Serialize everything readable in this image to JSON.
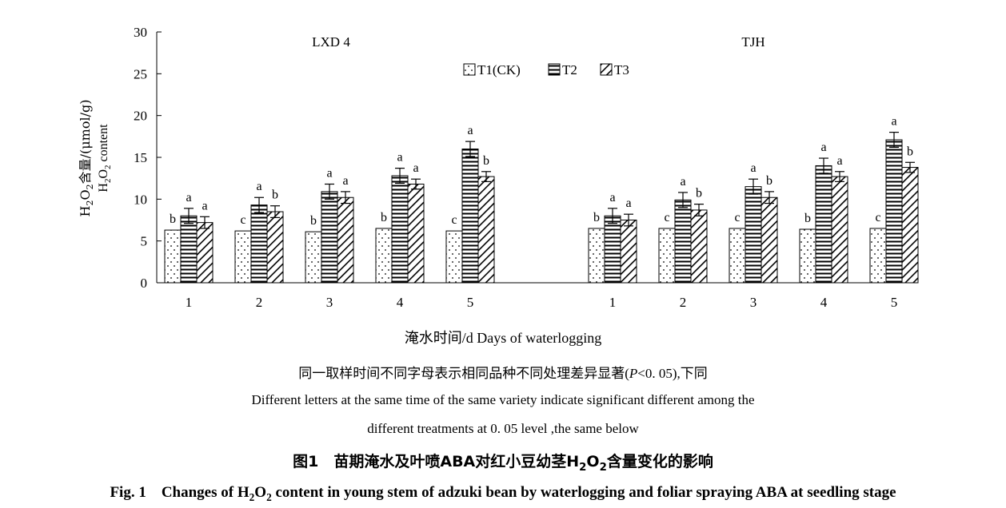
{
  "chart_data": {
    "type": "bar",
    "ylabel_cn": "H2O2含量/(μmol/g)",
    "ylabel_en": "H2O2 content",
    "xlabel": "淹水时间/d Days of waterlogging",
    "ylim": [
      0,
      30
    ],
    "yticks": [
      0,
      5,
      10,
      15,
      20,
      25,
      30
    ],
    "legend": [
      "T1(CK)",
      "T2",
      "T3"
    ],
    "legend_position": "top-center",
    "groups": [
      {
        "name": "LXD 4",
        "categories": [
          "1",
          "2",
          "3",
          "4",
          "5"
        ],
        "series": [
          {
            "name": "T1(CK)",
            "values": [
              6.3,
              6.2,
              6.1,
              6.5,
              6.2
            ],
            "errors": [
              0,
              0,
              0,
              0,
              0
            ],
            "letters": [
              "b",
              "c",
              "b",
              "b",
              "c"
            ]
          },
          {
            "name": "T2",
            "values": [
              8.0,
              9.3,
              10.9,
              12.8,
              16.0
            ],
            "errors": [
              0.9,
              0.9,
              0.9,
              0.9,
              0.9
            ],
            "letters": [
              "a",
              "a",
              "a",
              "a",
              "a"
            ]
          },
          {
            "name": "T3",
            "values": [
              7.2,
              8.5,
              10.2,
              11.8,
              12.7
            ],
            "errors": [
              0.7,
              0.7,
              0.7,
              0.6,
              0.6
            ],
            "letters": [
              "a",
              "b",
              "a",
              "a",
              "b"
            ]
          }
        ]
      },
      {
        "name": "TJH",
        "categories": [
          "1",
          "2",
          "3",
          "4",
          "5"
        ],
        "series": [
          {
            "name": "T1(CK)",
            "values": [
              6.5,
              6.5,
              6.5,
              6.4,
              6.5
            ],
            "errors": [
              0,
              0,
              0,
              0,
              0
            ],
            "letters": [
              "b",
              "c",
              "c",
              "b",
              "c"
            ]
          },
          {
            "name": "T2",
            "values": [
              8.0,
              9.9,
              11.5,
              14.0,
              17.1
            ],
            "errors": [
              0.9,
              0.9,
              0.9,
              0.9,
              0.9
            ],
            "letters": [
              "a",
              "a",
              "a",
              "a",
              "a"
            ]
          },
          {
            "name": "T3",
            "values": [
              7.5,
              8.7,
              10.2,
              12.7,
              13.8
            ],
            "errors": [
              0.7,
              0.7,
              0.7,
              0.6,
              0.6
            ],
            "letters": [
              "a",
              "b",
              "b",
              "a",
              "b"
            ]
          }
        ]
      }
    ]
  },
  "captions": {
    "note_cn": "同一取样时间不同字母表示相同品种不同处理差异显著(P<0. 05),下同",
    "note_en_line1": "Different letters at the same time of the same variety indicate significant different among the",
    "note_en_line2": "different treatments at 0. 05 level ,the same below",
    "title_cn": "图1　苗期淹水及叶喷ABA对红小豆幼茎H2O2含量变化的影响",
    "title_en": "Fig. 1　Changes of H2O2 content in young stem of adzuki bean by waterlogging and foliar spraying ABA at seedling stage"
  }
}
